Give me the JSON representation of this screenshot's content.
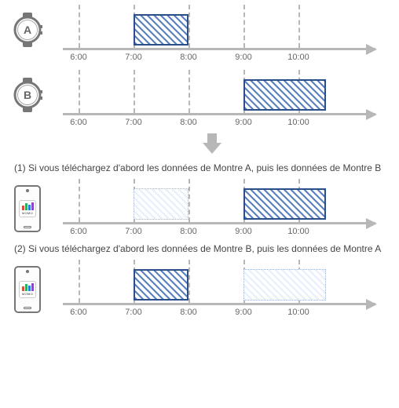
{
  "timeline": {
    "pxStart": 30,
    "pxPerHour": 70,
    "baseHour": 6,
    "tickHours": [
      6,
      7,
      8,
      9,
      10
    ],
    "tickLabels": [
      "6:00",
      "7:00",
      "8:00",
      "9:00",
      "10:00"
    ],
    "gridColor": "#b7b7b7",
    "axisColor": "#b7b7b7"
  },
  "watchA": {
    "label": "A",
    "bar": {
      "start": 7,
      "end": 8,
      "style": "solid"
    }
  },
  "watchB": {
    "label": "B",
    "bar": {
      "start": 9,
      "end": 10.5,
      "style": "solid"
    }
  },
  "arrowColor": "#b7b7b7",
  "case1": {
    "heading": "(1) Si vous téléchargez d'abord les données de Montre A, puis les données de Montre B",
    "appLabel": "MOMO",
    "bars": [
      {
        "start": 7,
        "end": 8,
        "style": "ghost"
      },
      {
        "start": 9,
        "end": 10.5,
        "style": "solid"
      }
    ]
  },
  "case2": {
    "heading": "(2) Si vous téléchargez d'abord les données de Montre B, puis les données de Montre A",
    "appLabel": "MOMO",
    "bars": [
      {
        "start": 7,
        "end": 8,
        "style": "solid"
      },
      {
        "start": 9,
        "end": 10.5,
        "style": "ghost"
      }
    ]
  },
  "colors": {
    "barBorder": "#2b4f88",
    "barFill": "#5a81c2",
    "ghostBorder": "#9fb4d8",
    "ghostFill": "#e6effc",
    "appRed": "#e14b3b",
    "appGreen": "#28b560",
    "appBlue": "#2a7de1",
    "appPurple": "#8b46c9"
  }
}
